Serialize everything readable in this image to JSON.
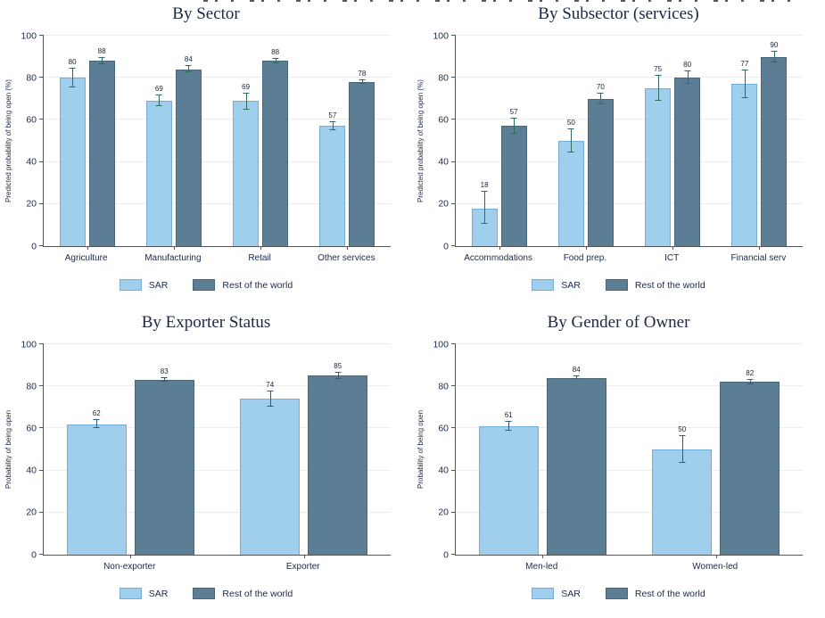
{
  "colors": {
    "sar_fill": "#9fcfec",
    "sar_border": "#74aed4",
    "row_fill": "#5b7e95",
    "row_border": "#48677c",
    "axis": "#565656",
    "gridline": "#ececec",
    "text": "#1a2848",
    "title_text": "#1c2740",
    "error_bar_top_charts": "#2d6b60",
    "error_bar_bottom_charts": "#35597d"
  },
  "legend": {
    "sar_label": "SAR",
    "row_label": "Rest of the world"
  },
  "chart_data": [
    {
      "type": "bar",
      "title": "By Sector",
      "xlabel": "",
      "ylabel": "Predicted probability of being open (%)",
      "ylim": [
        0,
        100
      ],
      "yticks": [
        0,
        20,
        40,
        60,
        80,
        100
      ],
      "grid": true,
      "legend_position": "bottom",
      "error_color": "#2d6b60",
      "categories": [
        "Agriculture",
        "Manufacturing",
        "Retail",
        "Other services"
      ],
      "series": [
        {
          "name": "SAR",
          "values": [
            80,
            69,
            69,
            57
          ],
          "ci_low": [
            75.5,
            66.5,
            65,
            55
          ],
          "ci_high": [
            84.5,
            71.5,
            72.5,
            59
          ]
        },
        {
          "name": "Rest of the world",
          "values": [
            88,
            84,
            88,
            78
          ],
          "ci_low": [
            86.5,
            82.5,
            87,
            77
          ],
          "ci_high": [
            89.5,
            85.5,
            89,
            79
          ]
        }
      ]
    },
    {
      "type": "bar",
      "title": "By Subsector (services)",
      "xlabel": "",
      "ylabel": "Predicted probability of being open (%)",
      "ylim": [
        0,
        100
      ],
      "yticks": [
        0,
        20,
        40,
        60,
        80,
        100
      ],
      "grid": true,
      "legend_position": "bottom",
      "error_color": "#2d6b60",
      "categories": [
        "Accommodations",
        "Food prep.",
        "ICT",
        "Financial serv"
      ],
      "series": [
        {
          "name": "SAR",
          "values": [
            18,
            50,
            75,
            77
          ],
          "ci_low": [
            10.5,
            44.5,
            69,
            70.5
          ],
          "ci_high": [
            26,
            55.5,
            81,
            83.5
          ]
        },
        {
          "name": "Rest of the world",
          "values": [
            57,
            70,
            80,
            90
          ],
          "ci_low": [
            53.5,
            67.5,
            77,
            87.5
          ],
          "ci_high": [
            60.5,
            72.5,
            83,
            92.5
          ]
        }
      ]
    },
    {
      "type": "bar",
      "title": "By Exporter Status",
      "xlabel": "",
      "ylabel": "Probability of being open",
      "ylim": [
        0,
        100
      ],
      "yticks": [
        0,
        20,
        40,
        60,
        80,
        100
      ],
      "grid": true,
      "legend_position": "bottom",
      "error_color": "#35597d",
      "categories": [
        "Non-exporter",
        "Exporter"
      ],
      "series": [
        {
          "name": "SAR",
          "values": [
            62,
            74
          ],
          "ci_low": [
            60,
            70.5
          ],
          "ci_high": [
            64,
            77.5
          ]
        },
        {
          "name": "Rest of the world",
          "values": [
            83,
            85
          ],
          "ci_low": [
            82.3,
            83.5
          ],
          "ci_high": [
            83.7,
            86.5
          ]
        }
      ]
    },
    {
      "type": "bar",
      "title": "By Gender of Owner",
      "xlabel": "",
      "ylabel": "Probability of being open",
      "ylim": [
        0,
        100
      ],
      "yticks": [
        0,
        20,
        40,
        60,
        80,
        100
      ],
      "grid": true,
      "legend_position": "bottom",
      "error_color": "#35597d",
      "categories": [
        "Men-led",
        "Women-led"
      ],
      "series": [
        {
          "name": "SAR",
          "values": [
            61,
            50
          ],
          "ci_low": [
            58.8,
            43.5
          ],
          "ci_high": [
            63.2,
            56.5
          ]
        },
        {
          "name": "Rest of the world",
          "values": [
            84,
            82
          ],
          "ci_low": [
            83.3,
            80.8
          ],
          "ci_high": [
            84.7,
            83.2
          ]
        }
      ]
    }
  ]
}
